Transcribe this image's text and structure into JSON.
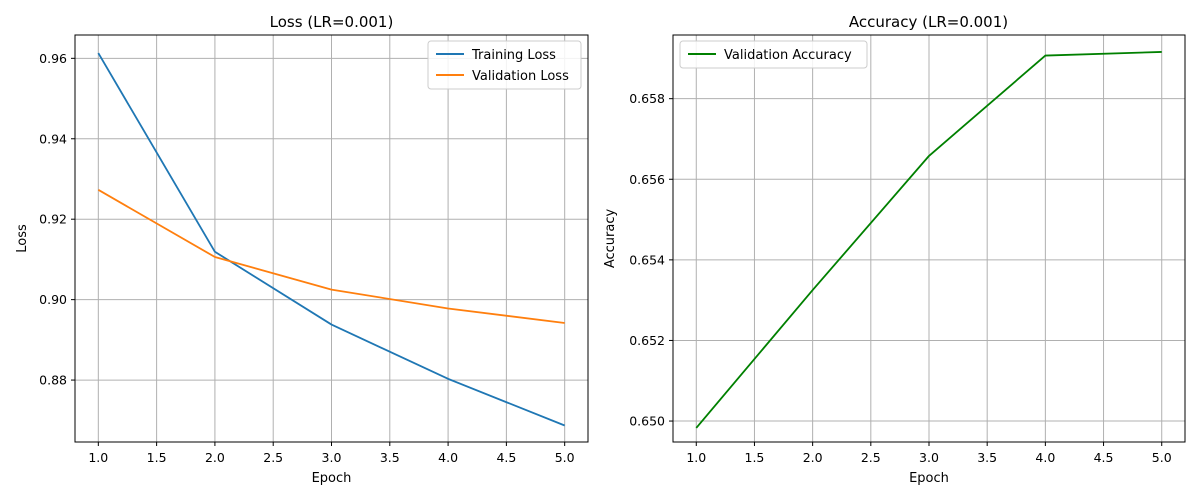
{
  "chart_data": [
    {
      "type": "line",
      "title": "Loss (LR=0.001)",
      "xlabel": "Epoch",
      "ylabel": "Loss",
      "x": [
        1,
        2,
        3,
        4,
        5
      ],
      "xlim": [
        0.8,
        5.2
      ],
      "ylim": [
        0.8646,
        0.9658
      ],
      "xticks": [
        "1.0",
        "1.5",
        "2.0",
        "2.5",
        "3.0",
        "3.5",
        "4.0",
        "4.5",
        "5.0"
      ],
      "yticks": [
        "0.88",
        "0.90",
        "0.92",
        "0.94",
        "0.96"
      ],
      "grid": true,
      "legend_position": "top-right",
      "series": [
        {
          "name": "Training Loss",
          "color": "#1f77b4",
          "values": [
            0.9613,
            0.9119,
            0.8938,
            0.8803,
            0.8687
          ]
        },
        {
          "name": "Validation Loss",
          "color": "#ff7f0e",
          "values": [
            0.9273,
            0.9106,
            0.9025,
            0.8978,
            0.8942
          ]
        }
      ]
    },
    {
      "type": "line",
      "title": "Accuracy (LR=0.001)",
      "xlabel": "Epoch",
      "ylabel": "Accuracy",
      "x": [
        1,
        2,
        3,
        4,
        5
      ],
      "xlim": [
        0.8,
        5.2
      ],
      "ylim": [
        0.64948,
        0.65958
      ],
      "xticks": [
        "1.0",
        "1.5",
        "2.0",
        "2.5",
        "3.0",
        "3.5",
        "4.0",
        "4.5",
        "5.0"
      ],
      "yticks": [
        "0.650",
        "0.652",
        "0.654",
        "0.656",
        "0.658"
      ],
      "grid": true,
      "legend_position": "top-left",
      "series": [
        {
          "name": "Validation Accuracy",
          "color": "#008000",
          "values": [
            0.64983,
            0.65325,
            0.65658,
            0.65907,
            0.65916
          ]
        }
      ]
    }
  ]
}
